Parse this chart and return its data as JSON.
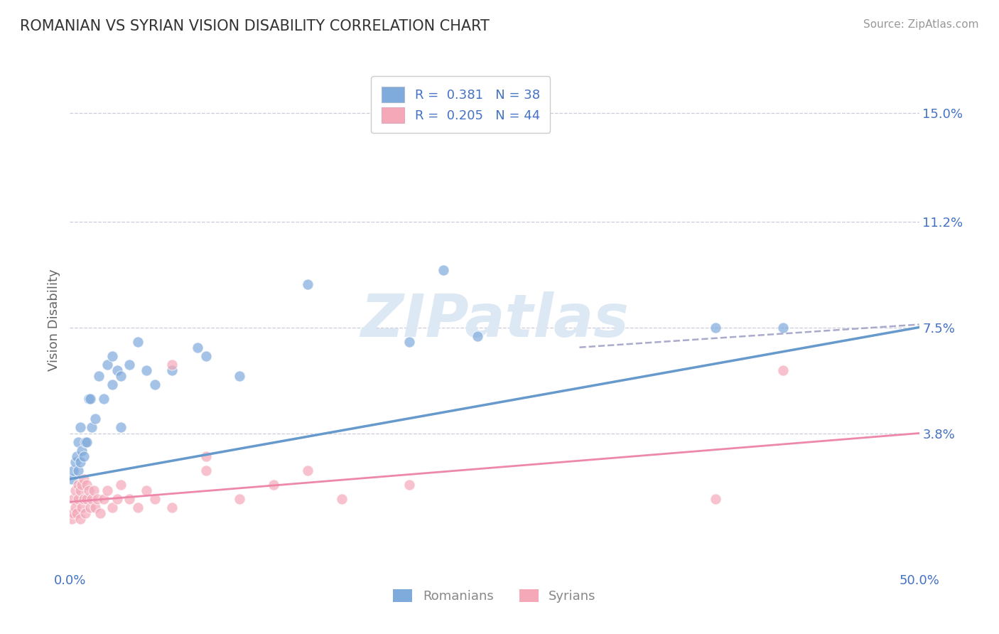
{
  "title": "ROMANIAN VS SYRIAN VISION DISABILITY CORRELATION CHART",
  "source": "Source: ZipAtlas.com",
  "ylabel": "Vision Disability",
  "xlim": [
    0,
    0.5
  ],
  "ylim": [
    -0.01,
    0.165
  ],
  "yticks": [
    0.038,
    0.075,
    0.112,
    0.15
  ],
  "ytick_labels": [
    "3.8%",
    "7.5%",
    "11.2%",
    "15.0%"
  ],
  "xtick_labels": [
    "0.0%",
    "50.0%"
  ],
  "xtick_pos": [
    0.0,
    0.5
  ],
  "color_romanian": "#7faadc",
  "color_syrian": "#f4a8b8",
  "color_trend_romanian": "#6699cc",
  "color_trend_syrian": "#ee88aa",
  "color_trend_dashed": "#aaaacc",
  "color_text_blue": "#4472c4",
  "background_color": "#ffffff",
  "grid_color": "#ccccdd",
  "romanians_x": [
    0.001,
    0.002,
    0.003,
    0.004,
    0.005,
    0.005,
    0.006,
    0.006,
    0.007,
    0.008,
    0.009,
    0.01,
    0.011,
    0.012,
    0.013,
    0.015,
    0.017,
    0.02,
    0.022,
    0.025,
    0.028,
    0.03,
    0.035,
    0.04,
    0.05,
    0.06,
    0.08,
    0.1,
    0.14,
    0.2,
    0.22,
    0.24,
    0.38,
    0.42,
    0.03,
    0.025,
    0.045,
    0.075
  ],
  "romanians_y": [
    0.022,
    0.025,
    0.028,
    0.03,
    0.025,
    0.035,
    0.028,
    0.04,
    0.032,
    0.03,
    0.035,
    0.035,
    0.05,
    0.05,
    0.04,
    0.043,
    0.058,
    0.05,
    0.062,
    0.065,
    0.06,
    0.058,
    0.062,
    0.07,
    0.055,
    0.06,
    0.065,
    0.058,
    0.09,
    0.07,
    0.095,
    0.072,
    0.075,
    0.075,
    0.04,
    0.055,
    0.06,
    0.068
  ],
  "syrians_x": [
    0.001,
    0.002,
    0.002,
    0.003,
    0.003,
    0.004,
    0.005,
    0.005,
    0.006,
    0.006,
    0.007,
    0.007,
    0.008,
    0.008,
    0.009,
    0.01,
    0.01,
    0.011,
    0.012,
    0.013,
    0.014,
    0.015,
    0.016,
    0.018,
    0.02,
    0.022,
    0.025,
    0.028,
    0.03,
    0.035,
    0.04,
    0.045,
    0.05,
    0.06,
    0.08,
    0.1,
    0.12,
    0.14,
    0.16,
    0.2,
    0.38,
    0.42,
    0.06,
    0.08
  ],
  "syrians_y": [
    0.008,
    0.01,
    0.015,
    0.012,
    0.018,
    0.01,
    0.015,
    0.02,
    0.008,
    0.018,
    0.012,
    0.02,
    0.015,
    0.022,
    0.01,
    0.015,
    0.02,
    0.018,
    0.012,
    0.015,
    0.018,
    0.012,
    0.015,
    0.01,
    0.015,
    0.018,
    0.012,
    0.015,
    0.02,
    0.015,
    0.012,
    0.018,
    0.015,
    0.012,
    0.025,
    0.015,
    0.02,
    0.025,
    0.015,
    0.02,
    0.015,
    0.06,
    0.062,
    0.03
  ],
  "trend_romanian_x0": 0.0,
  "trend_romanian_y0": 0.022,
  "trend_romanian_x1": 0.5,
  "trend_romanian_y1": 0.075,
  "trend_syrian_x0": 0.0,
  "trend_syrian_y0": 0.014,
  "trend_syrian_x1": 0.5,
  "trend_syrian_y1": 0.038,
  "trend_dashed_x0": 0.3,
  "trend_dashed_y0": 0.068,
  "trend_dashed_x1": 0.5,
  "trend_dashed_y1": 0.076
}
